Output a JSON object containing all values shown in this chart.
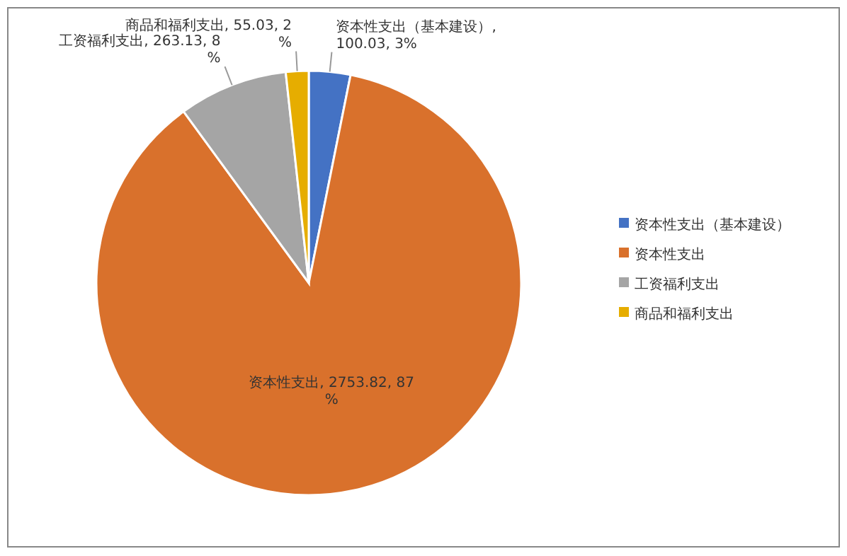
{
  "chart_data": {
    "type": "pie",
    "categories": [
      "资本性支出（基本建设）",
      "资本性支出",
      "工资福利支出",
      "商品和福利支出"
    ],
    "values": [
      100.03,
      2753.82,
      263.13,
      55.03
    ],
    "colors": [
      "#4472c4",
      "#d9712c",
      "#a5a5a5",
      "#e6ad00"
    ],
    "value_labels": [
      "资本性支出（基本建设）, 100.03, 3%",
      "资本性支出, 2753.82, 87%",
      "工资福利支出, 263.13, 8%",
      "商品和福利支出, 55.03, 2%"
    ],
    "legend": "right"
  }
}
